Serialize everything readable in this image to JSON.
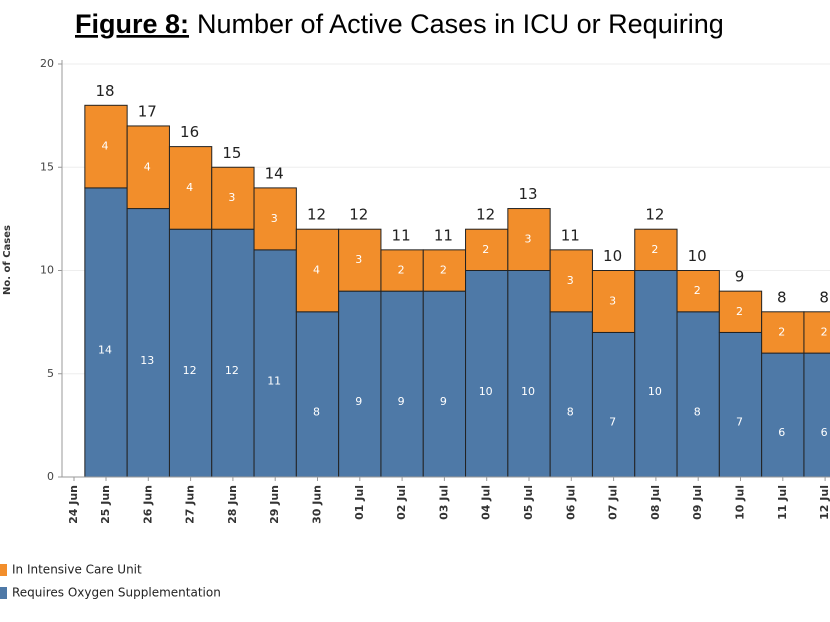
{
  "chart_data": {
    "type": "stacked_bar",
    "title_label": "Figure 8:",
    "title": "Number of Active Cases in ICU or Requiring",
    "y_label": "No. of Cases",
    "categories": [
      "24 Jun",
      "25 Jun",
      "26 Jun",
      "27 Jun",
      "28 Jun",
      "29 Jun",
      "30 Jun",
      "01 Jul",
      "02 Jul",
      "03 Jul",
      "04 Jul",
      "05 Jul",
      "06 Jul",
      "07 Jul",
      "08 Jul",
      "09 Jul",
      "10 Jul",
      "11 Jul",
      "12 Jul"
    ],
    "series": [
      {
        "name": "Requires Oxygen Supplementation",
        "color": "#4e79a7",
        "values": [
          null,
          14,
          13,
          12,
          12,
          11,
          8,
          9,
          9,
          9,
          10,
          10,
          8,
          7,
          10,
          8,
          7,
          6,
          6
        ]
      },
      {
        "name": "In Intensive Care Unit",
        "color": "#f28e2b",
        "values": [
          null,
          4,
          4,
          4,
          3,
          3,
          4,
          3,
          2,
          2,
          2,
          3,
          3,
          3,
          2,
          2,
          2,
          2,
          2
        ]
      }
    ],
    "totals": [
      null,
      18,
      17,
      16,
      15,
      14,
      12,
      12,
      11,
      11,
      12,
      13,
      11,
      10,
      12,
      10,
      9,
      8,
      8
    ],
    "ylim": [
      0,
      20
    ],
    "yticks": [
      0,
      5,
      10,
      15,
      20
    ],
    "grid": true
  }
}
